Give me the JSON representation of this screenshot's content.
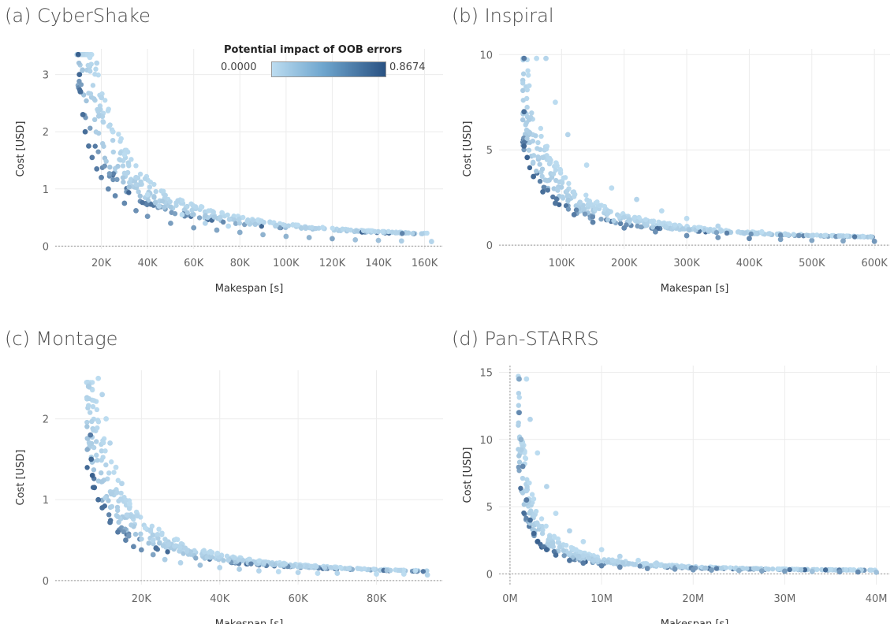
{
  "legend": {
    "title": "Potential impact of OOB errors",
    "min": "0.0000",
    "max": "0.8674",
    "color_low": "#bcdcf0",
    "color_high": "#2a5283"
  },
  "chart_data": [
    {
      "type": "scatter",
      "title": "(a) CyberShake",
      "xlabel": "Makespan [s]",
      "ylabel": "Cost [USD]",
      "xlim": [
        0,
        168000
      ],
      "ylim": [
        -0.05,
        3.45
      ],
      "xticks": [
        20000,
        40000,
        60000,
        80000,
        100000,
        120000,
        140000,
        160000
      ],
      "xticklabels": [
        "20K",
        "40K",
        "60K",
        "80K",
        "100K",
        "120K",
        "140K",
        "160K"
      ],
      "yticks": [
        0,
        1,
        2,
        3
      ],
      "yticklabels": [
        "0",
        "1",
        "2",
        "3"
      ],
      "curve": {
        "xmin": 9500,
        "xmax": 163000,
        "a": 27000,
        "b": 0.04,
        "ymax": 3.35
      },
      "points": [
        [
          10000,
          3.35,
          0.9
        ],
        [
          10500,
          3.0,
          0.85
        ],
        [
          11000,
          2.7,
          0.8
        ],
        [
          12000,
          2.3,
          0.8
        ],
        [
          13000,
          2.0,
          0.8
        ],
        [
          14500,
          1.75,
          0.75
        ],
        [
          16000,
          1.55,
          0.7
        ],
        [
          18000,
          1.35,
          0.7
        ],
        [
          20000,
          1.2,
          0.65
        ],
        [
          23000,
          1.0,
          0.6
        ],
        [
          26000,
          0.88,
          0.6
        ],
        [
          30000,
          0.75,
          0.6
        ],
        [
          35000,
          0.62,
          0.55
        ],
        [
          40000,
          0.52,
          0.5
        ],
        [
          50000,
          0.4,
          0.45
        ],
        [
          60000,
          0.32,
          0.45
        ],
        [
          70000,
          0.28,
          0.4
        ],
        [
          80000,
          0.24,
          0.35
        ],
        [
          90000,
          0.2,
          0.3
        ],
        [
          100000,
          0.17,
          0.3
        ],
        [
          110000,
          0.15,
          0.3
        ],
        [
          120000,
          0.13,
          0.4
        ],
        [
          130000,
          0.11,
          0.2
        ],
        [
          140000,
          0.1,
          0.2
        ],
        [
          150000,
          0.09,
          0.1
        ],
        [
          163000,
          0.08,
          0.05
        ],
        [
          15000,
          3.3,
          0.0
        ],
        [
          18000,
          3.2,
          0.05
        ],
        [
          20000,
          2.6,
          0.05
        ],
        [
          25000,
          2.0,
          0.0
        ],
        [
          30000,
          1.6,
          0.0
        ],
        [
          35000,
          1.2,
          0.05
        ],
        [
          40000,
          0.9,
          0.0
        ],
        [
          45000,
          0.7,
          0.05
        ],
        [
          55000,
          0.55,
          0.0
        ],
        [
          65000,
          0.4,
          0.05
        ],
        [
          75000,
          0.35,
          0.0
        ]
      ]
    },
    {
      "type": "scatter",
      "title": "(b) Inspiral",
      "xlabel": "Makespan [s]",
      "ylabel": "Cost [USD]",
      "xlim": [
        0,
        625000
      ],
      "ylim": [
        -0.2,
        10.3
      ],
      "xticks": [
        100000,
        200000,
        300000,
        400000,
        500000,
        600000
      ],
      "xticklabels": [
        "100K",
        "200K",
        "300K",
        "400K",
        "500K",
        "600K"
      ],
      "yticks": [
        0,
        5,
        10
      ],
      "yticklabels": [
        "0",
        "5",
        "10"
      ],
      "curve": {
        "xmin": 38000,
        "xmax": 600000,
        "a": 190000,
        "b": 0.1,
        "ymax": 9.8
      },
      "points": [
        [
          40000,
          9.8,
          0.7
        ],
        [
          40000,
          7.0,
          0.8
        ],
        [
          40000,
          5.2,
          0.85
        ],
        [
          45000,
          4.6,
          0.9
        ],
        [
          55000,
          3.6,
          0.85
        ],
        [
          70000,
          2.8,
          0.8
        ],
        [
          90000,
          2.2,
          0.75
        ],
        [
          120000,
          1.6,
          0.7
        ],
        [
          150000,
          1.2,
          0.65
        ],
        [
          200000,
          0.9,
          0.6
        ],
        [
          250000,
          0.7,
          0.55
        ],
        [
          300000,
          0.5,
          0.55
        ],
        [
          350000,
          0.4,
          0.5
        ],
        [
          400000,
          0.35,
          0.6
        ],
        [
          450000,
          0.3,
          0.45
        ],
        [
          500000,
          0.25,
          0.4
        ],
        [
          550000,
          0.22,
          0.4
        ],
        [
          600000,
          0.2,
          0.5
        ],
        [
          60000,
          9.8,
          0.0
        ],
        [
          75000,
          9.8,
          0.05
        ],
        [
          90000,
          7.5,
          0.0
        ],
        [
          110000,
          5.8,
          0.05
        ],
        [
          140000,
          4.2,
          0.0
        ],
        [
          180000,
          3.0,
          0.0
        ],
        [
          220000,
          2.4,
          0.05
        ],
        [
          260000,
          1.8,
          0.0
        ],
        [
          300000,
          1.4,
          0.0
        ],
        [
          350000,
          1.0,
          0.05
        ],
        [
          420000,
          0.7,
          0.0
        ],
        [
          500000,
          0.5,
          0.05
        ]
      ]
    },
    {
      "type": "scatter",
      "title": "(c) Montage",
      "xlabel": "Makespan [s]",
      "ylabel": "Cost [USD]",
      "xlim": [
        -2000,
        97000
      ],
      "ylim": [
        -0.05,
        2.6
      ],
      "xticks": [
        20000,
        40000,
        60000,
        80000
      ],
      "xticklabels": [
        "20K",
        "40K",
        "60K",
        "80K"
      ],
      "yticks": [
        0,
        1,
        2
      ],
      "yticklabels": [
        "0",
        "1",
        "2"
      ],
      "curve": {
        "xmin": 6000,
        "xmax": 93000,
        "a": 8500,
        "b": 0.02,
        "ymax": 2.45
      },
      "points": [
        [
          6500,
          2.4,
          0.1
        ],
        [
          7000,
          1.8,
          0.7
        ],
        [
          7200,
          1.5,
          0.85
        ],
        [
          7500,
          1.3,
          0.9
        ],
        [
          8000,
          1.15,
          0.85
        ],
        [
          9000,
          1.0,
          0.8
        ],
        [
          10000,
          0.9,
          0.8
        ],
        [
          12000,
          0.72,
          0.75
        ],
        [
          14000,
          0.6,
          0.7
        ],
        [
          16000,
          0.5,
          0.65
        ],
        [
          18000,
          0.42,
          0.6
        ],
        [
          20000,
          0.38,
          0.55
        ],
        [
          23000,
          0.32,
          0.4
        ],
        [
          26000,
          0.26,
          0.1
        ],
        [
          30000,
          0.22,
          0.05
        ],
        [
          35000,
          0.19,
          0.2
        ],
        [
          40000,
          0.16,
          0.05
        ],
        [
          45000,
          0.14,
          0.1
        ],
        [
          50000,
          0.12,
          0.05
        ],
        [
          55000,
          0.11,
          0.0
        ],
        [
          60000,
          0.1,
          0.05
        ],
        [
          65000,
          0.09,
          0.0
        ],
        [
          70000,
          0.09,
          0.05
        ],
        [
          80000,
          0.08,
          0.0
        ],
        [
          87000,
          0.08,
          0.0
        ],
        [
          93000,
          0.07,
          0.05
        ],
        [
          9000,
          2.5,
          0.0
        ],
        [
          10000,
          2.3,
          0.05
        ],
        [
          11000,
          2.0,
          0.0
        ],
        [
          12000,
          1.7,
          0.05
        ],
        [
          13500,
          1.4,
          0.0
        ],
        [
          15000,
          1.2,
          0.05
        ],
        [
          17000,
          0.95,
          0.0
        ],
        [
          19000,
          0.8,
          0.05
        ],
        [
          21000,
          0.65,
          0.0
        ],
        [
          23000,
          0.5,
          0.05
        ]
      ]
    },
    {
      "type": "scatter",
      "title": "(d) Pan-STARRS",
      "xlabel": "Makespan [s]",
      "ylabel": "Cost [USD]",
      "xlim": [
        -1200000,
        41500000
      ],
      "ylim": [
        -0.8,
        15.5
      ],
      "xticks": [
        0,
        10000000,
        20000000,
        30000000,
        40000000
      ],
      "xticklabels": [
        "0M",
        "10M",
        "20M",
        "30M",
        "40M"
      ],
      "yticks": [
        0,
        5,
        10,
        15
      ],
      "yticklabels": [
        "0",
        "5",
        "10",
        "15"
      ],
      "curve": {
        "xmin": 900000,
        "xmax": 40000000,
        "a": 6500000,
        "b": 0.1,
        "ymax": 14.7
      },
      "points": [
        [
          1000000,
          14.5,
          0.4
        ],
        [
          1000000,
          12.0,
          0.6
        ],
        [
          1200000,
          10.0,
          0.3
        ],
        [
          1400000,
          8.0,
          0.6
        ],
        [
          1800000,
          5.5,
          0.7
        ],
        [
          2200000,
          4.0,
          0.8
        ],
        [
          2600000,
          3.0,
          0.85
        ],
        [
          3000000,
          2.4,
          0.9
        ],
        [
          4000000,
          1.8,
          0.85
        ],
        [
          5000000,
          1.4,
          0.8
        ],
        [
          6500000,
          1.0,
          0.75
        ],
        [
          8000000,
          0.8,
          0.7
        ],
        [
          10000000,
          0.6,
          0.65
        ],
        [
          12000000,
          0.5,
          0.6
        ],
        [
          15000000,
          0.4,
          0.55
        ],
        [
          18000000,
          0.35,
          0.5
        ],
        [
          20000000,
          0.3,
          0.5
        ],
        [
          22000000,
          0.28,
          0.45
        ],
        [
          25000000,
          0.25,
          0.3
        ],
        [
          27500000,
          0.22,
          0.4
        ],
        [
          30000000,
          0.2,
          0.45
        ],
        [
          33000000,
          0.18,
          0.2
        ],
        [
          36000000,
          0.15,
          0.5
        ],
        [
          38000000,
          0.14,
          0.6
        ],
        [
          40000000,
          0.12,
          0.2
        ],
        [
          1800000,
          14.5,
          0.0
        ],
        [
          2200000,
          11.5,
          0.05
        ],
        [
          3000000,
          9.0,
          0.0
        ],
        [
          4000000,
          6.5,
          0.05
        ],
        [
          5000000,
          4.5,
          0.0
        ],
        [
          6500000,
          3.2,
          0.05
        ],
        [
          8000000,
          2.4,
          0.0
        ],
        [
          10000000,
          1.8,
          0.0
        ],
        [
          12000000,
          1.3,
          0.05
        ],
        [
          14000000,
          1.0,
          0.0
        ],
        [
          16000000,
          0.8,
          0.05
        ]
      ]
    }
  ]
}
